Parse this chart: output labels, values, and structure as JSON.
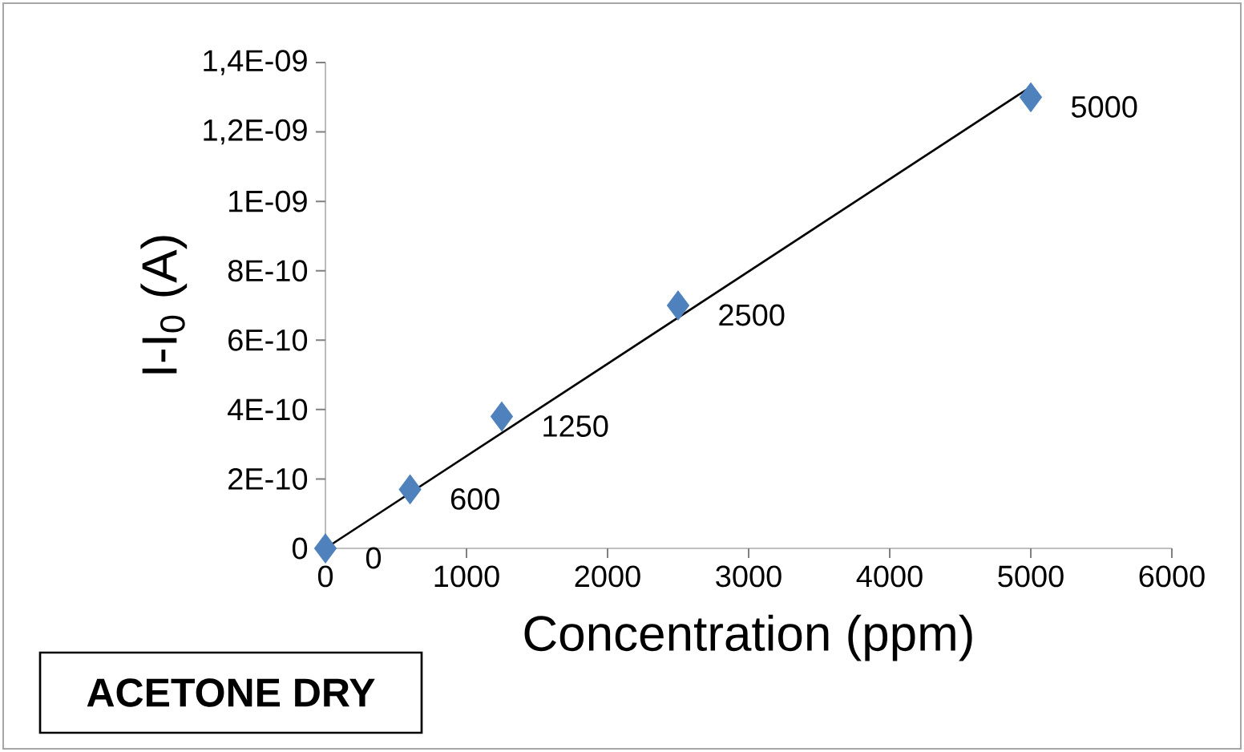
{
  "chart_data": {
    "type": "scatter",
    "xlabel": "Concentration (ppm)",
    "ylabel": "I-I$_{0}$ (A)",
    "annotations": [
      "**ACETONE DRY**",
      {
        "text": "0",
        "x": 0,
        "y": 0
      },
      {
        "text": "600",
        "x": 600,
        "y": 1.7e-10
      },
      {
        "text": "1250",
        "x": 1250,
        "y": 3.8e-10
      },
      {
        "text": "2500",
        "x": 2500,
        "y": 7e-10
      },
      {
        "text": "5000",
        "x": 5000,
        "y": 1.3e-09
      }
    ],
    "xlim": [
      0,
      6000
    ],
    "xticks": [
      0,
      1000,
      2000,
      3000,
      4000,
      5000,
      6000
    ],
    "ylim": [
      0,
      1.4e-09
    ],
    "yticks": [
      0,
      {
        "value": 2e-10,
        "label": "2E-10"
      },
      {
        "value": 4e-10,
        "label": "4E-10"
      },
      {
        "value": 6e-10,
        "label": "6E-10"
      },
      {
        "value": 8e-10,
        "label": "8E-10"
      },
      {
        "value": 1e-09,
        "label": "1E-09"
      },
      {
        "value": 1.2e-09,
        "label": "1,2E-09"
      },
      {
        "value": 1.4e-09,
        "label": "1,4E-09"
      }
    ],
    "series": [
      {
        "color": "#4f81bd",
        "marker": "diamond",
        "x": [
          0,
          600,
          1250,
          2500,
          5000
        ],
        "values": [
          0,
          1.7e-10,
          3.8e-10,
          7e-10,
          1.3e-09
        ]
      },
      {
        "type": "line",
        "color": "#000000",
        "marker": "none",
        "line_style": "solid",
        "x": [
          0,
          5000
        ],
        "values": [
          0,
          1.33e-09
        ]
      }
    ]
  }
}
